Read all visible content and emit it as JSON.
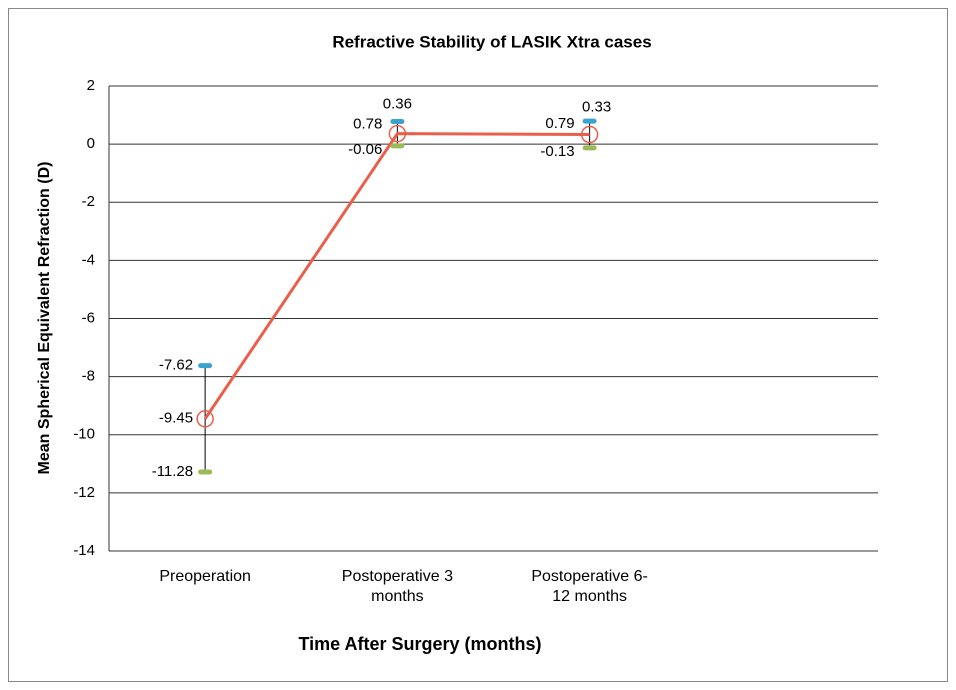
{
  "chart_data": {
    "type": "line",
    "title": "Refractive Stability of LASIK Xtra cases",
    "x_label": "Time After Surgery (months)",
    "y_label": "Mean Spherical Equivalent Refraction (D)",
    "categories": [
      "Preoperation",
      "Postoperative 3 months",
      "Postoperative 6-12 months",
      null
    ],
    "series": [
      {
        "name": "Mean",
        "color": "#e8604c",
        "values": [
          -9.45,
          0.36,
          0.33,
          null
        ]
      },
      {
        "name": "Upper",
        "color": "#3ba3d0",
        "values": [
          -7.62,
          0.78,
          0.79,
          null
        ]
      },
      {
        "name": "Lower",
        "color": "#9bbb59",
        "values": [
          -11.28,
          -0.06,
          -0.13,
          null
        ]
      }
    ],
    "ylim": [
      -14,
      2
    ],
    "yticks": [
      -14,
      -12,
      -10,
      -8,
      -6,
      -4,
      -2,
      0,
      2
    ],
    "grid": true
  }
}
